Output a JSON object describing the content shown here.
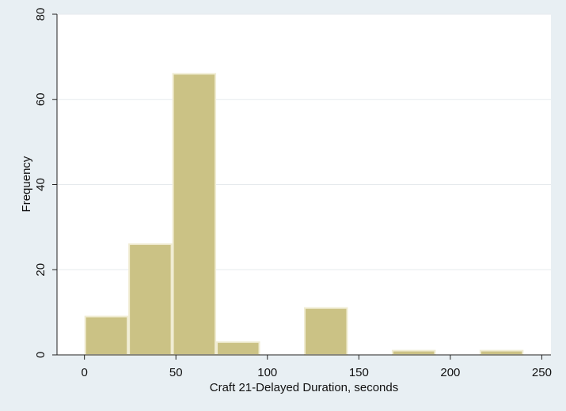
{
  "chart_data": {
    "type": "bar",
    "subtype": "histogram",
    "xlabel": "Craft 21-Delayed Duration, seconds",
    "ylabel": "Frequency",
    "xlim": [
      -15,
      255
    ],
    "ylim": [
      0,
      80
    ],
    "x_ticks": [
      "0",
      "50",
      "100",
      "150",
      "200",
      "250"
    ],
    "y_ticks": [
      "0",
      "20",
      "40",
      "60",
      "80"
    ],
    "bins": [
      {
        "start": 0,
        "end": 24,
        "count": 9
      },
      {
        "start": 24,
        "end": 48,
        "count": 26
      },
      {
        "start": 48,
        "end": 72,
        "count": 66
      },
      {
        "start": 72,
        "end": 96,
        "count": 3
      },
      {
        "start": 96,
        "end": 120,
        "count": 0
      },
      {
        "start": 120,
        "end": 144,
        "count": 11
      },
      {
        "start": 144,
        "end": 168,
        "count": 0
      },
      {
        "start": 168,
        "end": 192,
        "count": 1
      },
      {
        "start": 192,
        "end": 216,
        "count": 0
      },
      {
        "start": 216,
        "end": 240,
        "count": 1
      }
    ],
    "grid": true,
    "colors": {
      "background": "#e8eff3",
      "plot_area": "#ffffff",
      "bar_fill": "#cbc285",
      "bar_stroke": "#f0ecd2",
      "grid": "#e6eaed",
      "axis": "#222222"
    }
  }
}
